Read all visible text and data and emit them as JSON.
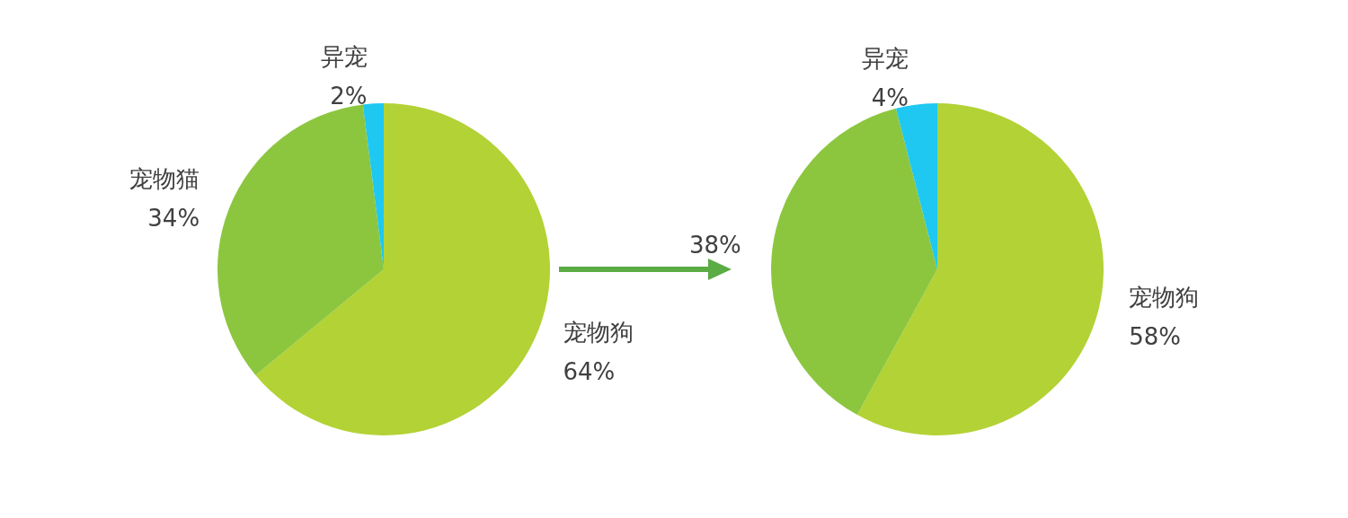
{
  "chart_data": [
    {
      "type": "pie",
      "categories": [
        "宠物狗",
        "宠物猫",
        "异宠"
      ],
      "values": [
        64,
        34,
        2
      ],
      "value_labels": [
        "64%",
        "34%",
        "2%"
      ],
      "colors": [
        "#b2d235",
        "#8cc63f",
        "#1ec8f0"
      ]
    },
    {
      "type": "pie",
      "categories": [
        "宠物狗",
        null,
        "异宠"
      ],
      "values": [
        58,
        38,
        4
      ],
      "value_labels": [
        "58%",
        "38%",
        "4%"
      ],
      "colors": [
        "#b2d235",
        "#8cc63f",
        "#1ec8f0"
      ]
    }
  ]
}
